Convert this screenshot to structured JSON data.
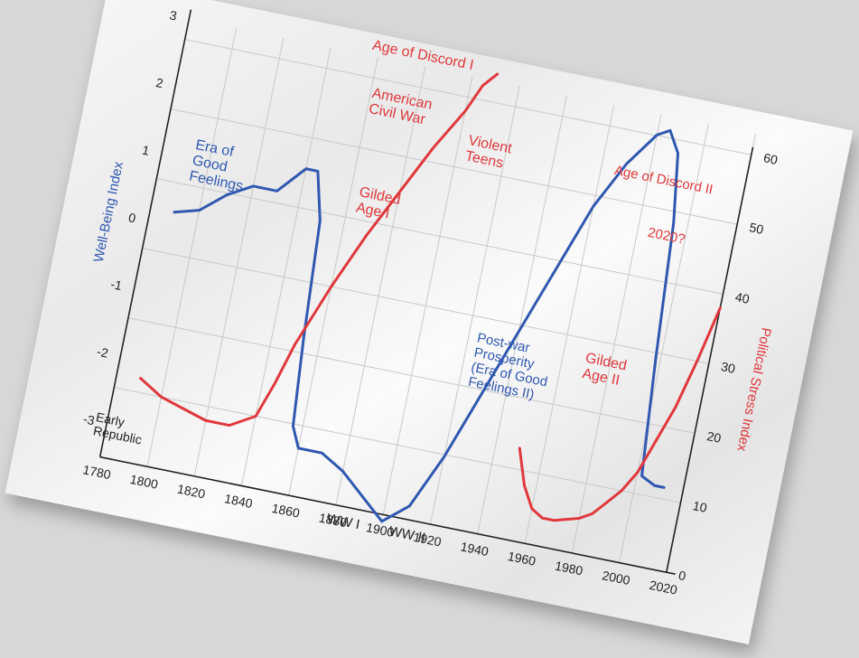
{
  "chart_data": {
    "type": "line",
    "title": "",
    "xlabel": "",
    "ylabel_left": "Well-Being Index",
    "ylabel_right": "Political Stress Index",
    "x_ticks": [
      "1780",
      "1800",
      "1820",
      "1840",
      "1860",
      "1880",
      "1900",
      "1920",
      "1940",
      "1960",
      "1980",
      "2000",
      "2020"
    ],
    "y_left_ticks": [
      "3",
      "2",
      "1",
      "0",
      "-1",
      "-2",
      "-3"
    ],
    "y_right_ticks": [
      "60",
      "50",
      "40",
      "30",
      "20",
      "10",
      "0"
    ],
    "xlim": [
      1780,
      2020
    ],
    "ylim_left": [
      -3.5,
      3
    ],
    "ylim_right": [
      0,
      63
    ],
    "grid": true,
    "colors": {
      "well_being": "#2f58b0",
      "political_stress": "#e0383c"
    },
    "series": [
      {
        "name": "Well-Being Index",
        "axis": "left",
        "color": "#2f58b0",
        "x": [
          1790,
          1800,
          1810,
          1820,
          1830,
          1840,
          1845,
          1850,
          1853,
          1856,
          1860,
          1870,
          1880,
          1890,
          1900,
          1910,
          1920,
          1930,
          1940,
          1950,
          1960,
          1970,
          1980,
          1985,
          1990,
          1994,
          1998,
          2002,
          2008,
          2012
        ],
        "y": [
          0.2,
          0.3,
          0.6,
          0.8,
          0.8,
          1.2,
          1.2,
          0.5,
          -1.2,
          -2.5,
          -2.8,
          -2.8,
          -3.0,
          -3.3,
          -3.6,
          -3.3,
          -2.5,
          -1.5,
          -0.5,
          0.5,
          1.5,
          2.2,
          2.7,
          2.8,
          2.5,
          1.5,
          -0.5,
          -2.2,
          -2.3,
          -2.3
        ]
      },
      {
        "name": "Political Stress Index",
        "axis": "right",
        "color": "#e0383c",
        "x": [
          1790,
          1800,
          1810,
          1820,
          1830,
          1840,
          1845,
          1850,
          1860,
          1870,
          1880,
          1890,
          1900,
          1905,
          1910,
          1950,
          1955,
          1960,
          1965,
          1970,
          1980,
          1985,
          1990,
          1995,
          2000,
          2005,
          2010,
          2015,
          2020
        ],
        "y": [
          12,
          10,
          9,
          8,
          8,
          10,
          15,
          21,
          30,
          38,
          45,
          52,
          58,
          62,
          64,
          13,
          8,
          5,
          4,
          4,
          5,
          6,
          8,
          10,
          13,
          18,
          23,
          30,
          38
        ]
      }
    ],
    "annotations": [
      {
        "text": "Age of Discord I",
        "color": "red"
      },
      {
        "text": "American\nCivil War",
        "color": "red"
      },
      {
        "text": "Violent\nTeens",
        "color": "red"
      },
      {
        "text": "Age of Discord II",
        "color": "red"
      },
      {
        "text": "2020?",
        "color": "red"
      },
      {
        "text": "Gilded\nAge I",
        "color": "red"
      },
      {
        "text": "Gilded\nAge II",
        "color": "red"
      },
      {
        "text": "Era of\nGood\nFeelings",
        "color": "blue"
      },
      {
        "text": "Post-war\nProsperity\n(Era of Good\nFeelings II)",
        "color": "blue"
      },
      {
        "text": "Early\nRepublic",
        "color": "black"
      },
      {
        "text": "WW I",
        "color": "black"
      },
      {
        "text": "WW II",
        "color": "black"
      }
    ]
  }
}
